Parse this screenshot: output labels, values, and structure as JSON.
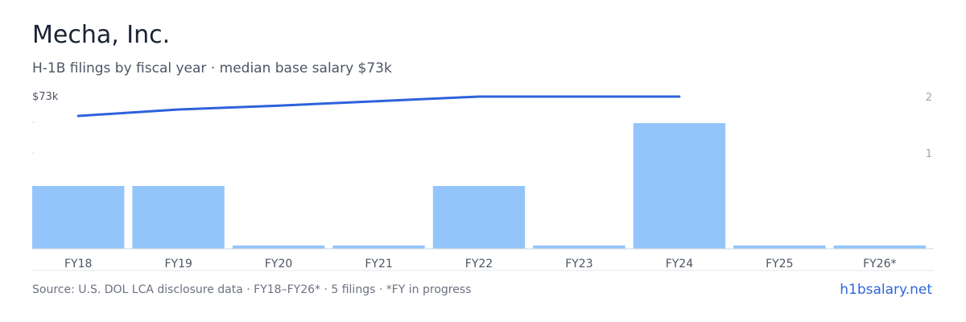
{
  "header": {
    "title": "Mecha, Inc.",
    "subtitle": "H-1B filings by fiscal year · median base salary $73k"
  },
  "footer": {
    "source": "Source: U.S. DOL LCA disclosure data · FY18–FY26* · 5 filings · *FY in progress",
    "site_link": "h1bsalary.net"
  },
  "colors": {
    "bar": "#93c5fb",
    "salary_line": "#2d62dc",
    "axis_line": "#d1d5db",
    "tick_text": "#4b5563",
    "right_tick_text": "#9ca3af",
    "link": "#2d66d9"
  },
  "chart_data": {
    "type": "bar+line",
    "categories": [
      "FY18",
      "FY19",
      "FY20",
      "FY21",
      "FY22",
      "FY23",
      "FY24",
      "FY25",
      "FY26*"
    ],
    "series": [
      {
        "kind": "bar",
        "axis": "right",
        "values": [
          1,
          1,
          0,
          0,
          1,
          0,
          2,
          0,
          0
        ]
      },
      {
        "kind": "line",
        "axis": "left",
        "values": [
          70,
          71,
          71.6,
          72.3,
          73,
          73,
          73,
          null,
          null
        ]
      }
    ],
    "left_axis": {
      "label_top": "$73k",
      "range": [
        0,
        73
      ]
    },
    "right_axis": {
      "ticks": [
        "2",
        "1"
      ],
      "range": [
        0,
        2
      ]
    },
    "zero_bar_stub": true,
    "grid": false,
    "legend": "none"
  }
}
